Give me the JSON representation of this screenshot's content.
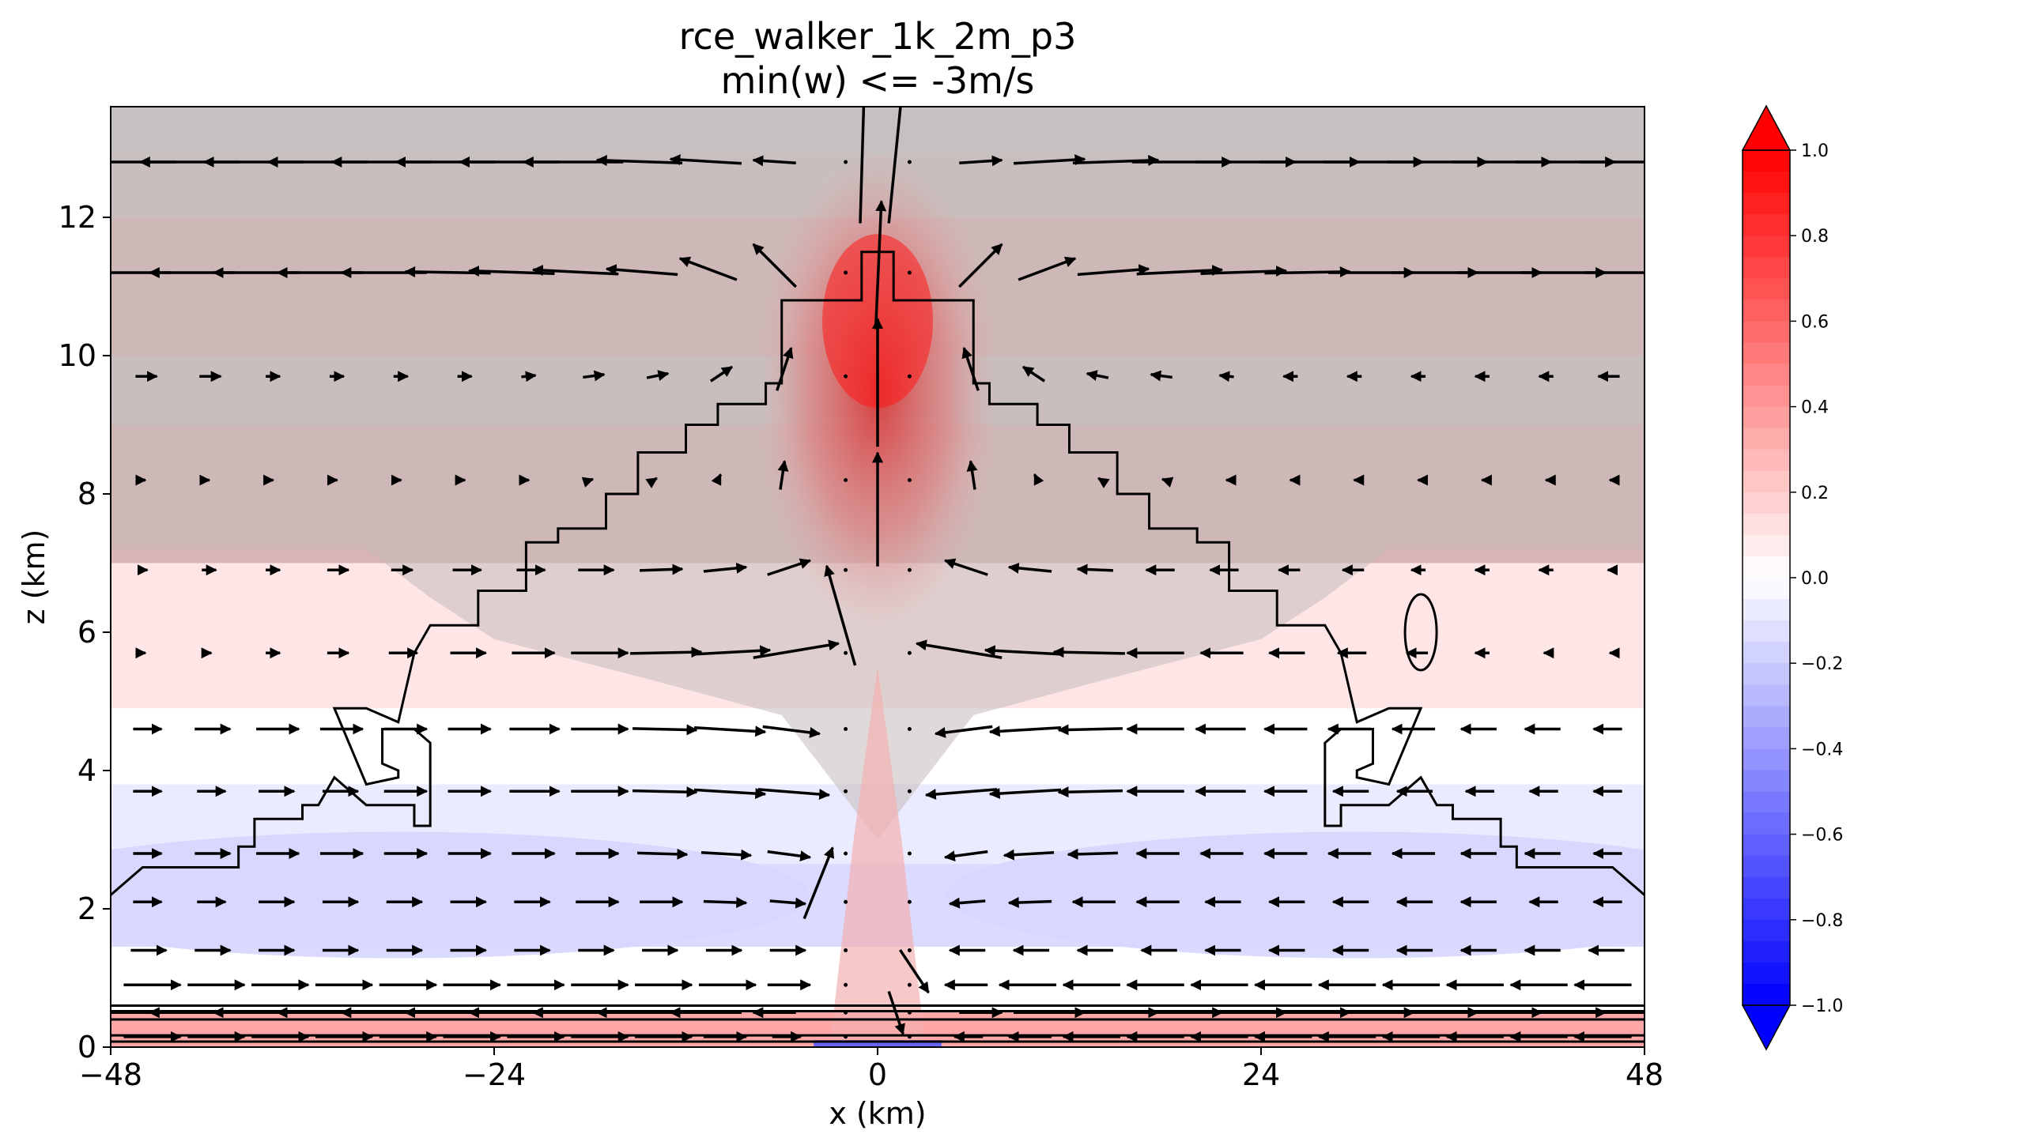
{
  "chart_data": {
    "type": "heatmap",
    "title": "rce_walker_1k_2m_p3",
    "subtitle": "min(w) <= -3m/s",
    "xlabel": "x (km)",
    "ylabel": "z (km)",
    "xlim": [
      -48,
      48
    ],
    "ylim": [
      0,
      13.6
    ],
    "x_ticks": [
      "−48",
      "−24",
      "0",
      "24",
      "48"
    ],
    "x_tick_values": [
      -48,
      -24,
      0,
      24,
      48
    ],
    "y_ticks": [
      "0",
      "2",
      "4",
      "6",
      "8",
      "10",
      "12"
    ],
    "y_tick_values": [
      0,
      2,
      4,
      6,
      8,
      10,
      12
    ],
    "colormap": "bwr",
    "colorbar": {
      "min": -1.0,
      "max": 1.0,
      "extend": "both",
      "tick_labels": [
        "1.0",
        "0.8",
        "0.6",
        "0.4",
        "0.2",
        "0.0",
        "−0.2",
        "−0.4",
        "−0.6",
        "−0.8",
        "−1.0"
      ],
      "tick_values": [
        1.0,
        0.8,
        0.6,
        0.4,
        0.2,
        0.0,
        -0.2,
        -0.4,
        -0.6,
        -0.8,
        -1.0
      ]
    },
    "shaded_field": {
      "description_free": true,
      "anomaly_rows": [
        {
          "z": 13.3,
          "value": 0.02
        },
        {
          "z": 12.5,
          "value": 0.12
        },
        {
          "z": 11.5,
          "value": 0.3
        },
        {
          "z": 10.5,
          "value": 0.3
        },
        {
          "z": 9.5,
          "value": 0.15
        },
        {
          "z": 8.5,
          "value": 0.28
        },
        {
          "z": 7.5,
          "value": 0.28
        },
        {
          "z": 6.5,
          "value": 0.1
        },
        {
          "z": 5.5,
          "value": 0.1
        },
        {
          "z": 4.3,
          "value": 0.0
        },
        {
          "z": 3.3,
          "value": -0.08
        },
        {
          "z": 2.0,
          "value": -0.14
        },
        {
          "z": 0.9,
          "value": 0.0
        },
        {
          "z": 0.15,
          "value": 0.35
        }
      ],
      "updraft_core_max": 0.9,
      "surface_downdraft_min": -0.6
    },
    "contour_left_x": [
      -48,
      -46,
      -40,
      -40,
      -39,
      -39,
      -36,
      -36,
      -35,
      -34,
      -32,
      -29,
      -29,
      -28,
      -28,
      -29,
      -31,
      -31,
      -30,
      -30,
      -32,
      -34,
      -32,
      -30,
      -29,
      -28,
      -25,
      -25,
      -22,
      -22,
      -20,
      -20,
      -17,
      -17,
      -15,
      -15,
      -12,
      -12,
      -10,
      -10,
      -7,
      -7,
      -6,
      -6,
      -5,
      -5,
      -4,
      -4,
      -1,
      -1,
      0
    ],
    "contour_left_z": [
      2.2,
      2.6,
      2.6,
      2.9,
      2.9,
      3.3,
      3.3,
      3.5,
      3.5,
      3.9,
      3.5,
      3.5,
      3.2,
      3.2,
      4.4,
      4.6,
      4.6,
      4.1,
      4.0,
      3.9,
      3.8,
      4.9,
      4.9,
      4.7,
      5.7,
      6.1,
      6.1,
      6.6,
      6.6,
      7.3,
      7.3,
      7.5,
      7.5,
      8.0,
      8.0,
      8.6,
      8.6,
      9.0,
      9.0,
      9.3,
      9.3,
      9.6,
      9.6,
      10.8,
      10.8,
      10.8,
      10.8,
      10.8,
      10.8,
      11.5,
      11.5
    ],
    "contour_right_oval_center": [
      34,
      6.0
    ],
    "contour_low_levels_z": [
      0.6,
      0.52,
      0.4,
      0.17,
      0.08
    ],
    "vector_columns_x": [
      -46,
      -42,
      -38,
      -34,
      -30,
      -26,
      -22,
      -18,
      -14,
      -10,
      -6,
      -2,
      2,
      6,
      10,
      14,
      18,
      22,
      26,
      30,
      34,
      38,
      42,
      46
    ],
    "vector_rows": [
      {
        "z": 12.8,
        "u": [
          -7,
          -7,
          -7,
          -7,
          -7,
          -7,
          -7,
          -7,
          -6,
          -5,
          -3,
          0,
          0,
          3,
          5,
          6,
          7,
          7,
          7,
          7,
          7,
          7,
          7,
          7
        ],
        "w": [
          0,
          0,
          0,
          0,
          0,
          0,
          0,
          0,
          0.2,
          0.3,
          0.2,
          0,
          0,
          0.2,
          0.3,
          0.2,
          0,
          0,
          0,
          0,
          0,
          0,
          0,
          0
        ]
      },
      {
        "z": 11.2,
        "u": [
          -6,
          -6,
          -6,
          -6,
          -6,
          -6,
          -6,
          -6,
          -5,
          -4,
          -3,
          0,
          0,
          3,
          4,
          5,
          6,
          6,
          6,
          6,
          6,
          6,
          6,
          6
        ],
        "w": [
          0,
          0,
          0,
          0,
          0,
          0.1,
          0.2,
          0.3,
          0.4,
          1.5,
          3.0,
          0,
          0,
          3.0,
          1.5,
          0.4,
          0.3,
          0.2,
          0.1,
          0,
          0,
          0,
          0,
          0
        ]
      },
      {
        "z": 9.7,
        "u": [
          1.5,
          1.5,
          1,
          1,
          1,
          1,
          1,
          1.5,
          1.5,
          1.5,
          1,
          0,
          0,
          -1,
          -1.5,
          -1.5,
          -1.5,
          -1,
          -1,
          -1,
          -1,
          -1,
          -1,
          -1.5
        ],
        "w": [
          0,
          0,
          0,
          0,
          0,
          0,
          0.1,
          0.2,
          0.3,
          1.0,
          3.0,
          0,
          0,
          3.0,
          1.0,
          0.3,
          0.2,
          0.1,
          0,
          0,
          0,
          0,
          0,
          0
        ]
      },
      {
        "z": 8.2,
        "u": [
          0.3,
          0.3,
          0.3,
          0.3,
          0.3,
          0.3,
          0.3,
          0.3,
          0.3,
          0.3,
          0.3,
          0,
          0,
          -0.3,
          -0.3,
          -0.3,
          -0.3,
          -0.3,
          -0.3,
          -0.3,
          -0.3,
          -0.3,
          -0.3,
          -0.3
        ],
        "w": [
          0,
          0,
          0,
          0,
          0,
          0,
          0,
          0.1,
          0.2,
          0.6,
          2.0,
          0,
          0,
          2.0,
          0.6,
          0.2,
          0.1,
          0,
          0,
          0,
          0,
          0,
          0,
          0
        ]
      },
      {
        "z": 6.9,
        "u": [
          0.5,
          1,
          1,
          1.5,
          1.5,
          2,
          2,
          2.5,
          3,
          3,
          3,
          0,
          0,
          -3,
          -3,
          -2.5,
          -2,
          -2,
          -1.5,
          -1.5,
          -1,
          -1,
          -1,
          -0.5
        ],
        "w": [
          0,
          0,
          0,
          0,
          0,
          0,
          0,
          0,
          0.1,
          0.3,
          1.0,
          0,
          0,
          1.0,
          0.3,
          0.1,
          0,
          0,
          0,
          0,
          0,
          0,
          0,
          0
        ]
      },
      {
        "z": 5.7,
        "u": [
          0.3,
          0.5,
          1,
          1.5,
          2,
          2.5,
          3,
          4,
          5,
          5.5,
          6,
          0,
          0,
          -6,
          -5.5,
          -5,
          -4,
          -3,
          -2.5,
          -2,
          -1.5,
          -1,
          -0.5,
          -0.3
        ],
        "w": [
          0,
          0,
          0,
          0,
          0,
          0,
          0,
          0,
          0.1,
          0.3,
          1.0,
          0,
          0,
          1.0,
          0.3,
          0.1,
          0,
          0,
          0,
          0,
          0,
          0,
          0,
          0
        ]
      },
      {
        "z": 4.6,
        "u": [
          2,
          2.5,
          3,
          3,
          3,
          3,
          3.5,
          4,
          4.5,
          5,
          4,
          0,
          0,
          -4,
          -5,
          -4.5,
          -4,
          -3.5,
          -3,
          -3,
          -3,
          -2.5,
          -2.5,
          -2
        ],
        "w": [
          0,
          0,
          0,
          0,
          0,
          0,
          0,
          0,
          -0.1,
          -0.3,
          -0.5,
          0,
          0,
          -0.5,
          -0.3,
          -0.1,
          0,
          0,
          0,
          0,
          0,
          0,
          0,
          0
        ]
      },
      {
        "z": 3.7,
        "u": [
          2,
          2,
          2.5,
          2.5,
          3,
          3,
          3.5,
          4,
          4.5,
          5,
          5,
          0,
          0,
          -5,
          -5,
          -4.5,
          -4,
          -3.5,
          -3,
          -2.5,
          -2.5,
          -2,
          -2,
          -2
        ],
        "w": [
          0,
          0,
          0,
          0,
          0,
          0,
          0,
          0,
          -0.1,
          -0.3,
          -0.4,
          0,
          0,
          -0.4,
          -0.3,
          -0.1,
          0,
          0,
          0,
          0,
          0,
          0,
          0,
          0
        ]
      },
      {
        "z": 2.8,
        "u": [
          2,
          2.5,
          3,
          3,
          3,
          3,
          3,
          3,
          3.5,
          3.5,
          3,
          0,
          0,
          -3,
          -3.5,
          -3.5,
          -3,
          -3,
          -3,
          -3,
          -3,
          -2.5,
          -2.5,
          -2
        ],
        "w": [
          0,
          0,
          0,
          0,
          0,
          0,
          0,
          0,
          -0.1,
          -0.2,
          -0.4,
          0,
          0,
          -0.4,
          -0.2,
          -0.1,
          0,
          0,
          0,
          0,
          0,
          0,
          0,
          0
        ]
      },
      {
        "z": 2.1,
        "u": [
          2,
          2,
          2.5,
          2.5,
          2.5,
          2.5,
          2.5,
          3,
          3,
          3,
          2.5,
          0,
          0,
          -2.5,
          -3,
          -3,
          -3,
          -2.5,
          -2.5,
          -2.5,
          -2.5,
          -2.5,
          -2,
          -2
        ],
        "w": [
          0,
          0,
          0,
          0,
          0,
          0,
          0,
          0,
          0,
          -0.1,
          -0.2,
          0,
          0,
          -0.2,
          -0.1,
          0,
          0,
          0,
          0,
          0,
          0,
          0,
          0,
          0
        ]
      },
      {
        "z": 1.4,
        "u": [
          2.5,
          2.5,
          2.5,
          2.5,
          2.5,
          2.5,
          2.5,
          2.5,
          2.5,
          2.5,
          2.5,
          0,
          0,
          -2.5,
          -2.5,
          -2.5,
          -2.5,
          -2.5,
          -2.5,
          -2.5,
          -2.5,
          -2.5,
          -2.5,
          -2.5
        ],
        "w": [
          0,
          0,
          0,
          0,
          0,
          0,
          0,
          0,
          0,
          0,
          0,
          0,
          0,
          0,
          0,
          0,
          0,
          0,
          0,
          0,
          0,
          0,
          0,
          0
        ]
      },
      {
        "z": 0.9,
        "u": [
          4,
          4,
          4,
          4,
          4,
          4,
          4,
          4,
          4,
          4,
          3,
          0,
          0,
          -3,
          -4,
          -4,
          -4,
          -4,
          -4,
          -4,
          -4,
          -4,
          -4,
          -4
        ],
        "w": [
          0,
          0,
          0,
          0,
          0,
          0,
          0,
          0,
          0,
          0,
          0,
          0,
          0,
          0,
          0,
          0,
          0,
          0,
          0,
          0,
          0,
          0,
          0,
          0
        ]
      },
      {
        "z": 0.5,
        "u": [
          -6,
          -6,
          -6,
          -6,
          -6,
          -6,
          -6,
          -6,
          -6,
          -5,
          -3,
          0,
          0,
          3,
          5,
          6,
          6,
          6,
          6,
          6,
          6,
          6,
          6,
          6
        ],
        "w": [
          0,
          0,
          0,
          0,
          0,
          0,
          0,
          0,
          0,
          0,
          0,
          0,
          0,
          0,
          0,
          0,
          0,
          0,
          0,
          0,
          0,
          0,
          0,
          0
        ]
      },
      {
        "z": 0.15,
        "u": [
          4,
          4,
          4,
          4,
          4,
          4,
          4,
          4,
          4,
          3,
          2,
          0,
          0,
          -2,
          -3,
          -4,
          -4,
          -4,
          -4,
          -4,
          -4,
          -4,
          -4,
          -4
        ],
        "w": [
          0,
          0,
          0,
          0,
          0,
          0,
          0,
          0,
          0,
          0,
          0,
          0,
          0,
          0,
          0,
          0,
          0,
          0,
          0,
          0,
          0,
          0,
          0,
          0
        ]
      }
    ],
    "center_vectors": [
      {
        "x": -1,
        "z": 12.6,
        "u": 0.3,
        "w": 10
      },
      {
        "x": 1,
        "z": 12.6,
        "u": 1,
        "w": 10
      },
      {
        "x": 0,
        "z": 11.0,
        "u": 0.4,
        "w": 9
      },
      {
        "x": 0,
        "z": 9.3,
        "u": 0,
        "w": 9
      },
      {
        "x": 0,
        "z": 7.5,
        "u": 0,
        "w": 8
      },
      {
        "x": -2,
        "z": 6.0,
        "u": -2,
        "w": 7
      },
      {
        "x": -4,
        "z": 2.2,
        "u": 2,
        "w": 5
      },
      {
        "x": 2,
        "z": 1.2,
        "u": 2,
        "w": -3
      },
      {
        "x": 1,
        "z": 0.6,
        "u": 1,
        "w": -3
      }
    ]
  }
}
